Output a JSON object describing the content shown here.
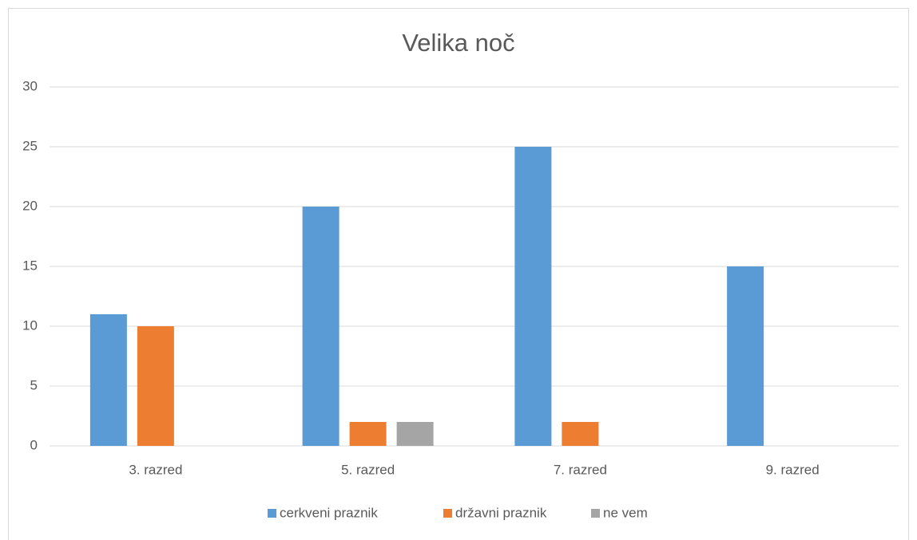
{
  "chart_data": {
    "type": "bar",
    "title": "Velika noč",
    "categories": [
      "3. razred",
      "5. razred",
      "7. razred",
      "9. razred"
    ],
    "series": [
      {
        "name": "cerkveni praznik",
        "color": "#5b9bd5",
        "values": [
          11,
          20,
          25,
          15
        ]
      },
      {
        "name": "državni praznik",
        "color": "#ed7d31",
        "values": [
          10,
          2,
          2,
          0
        ]
      },
      {
        "name": "ne vem",
        "color": "#a5a5a5",
        "values": [
          0,
          2,
          0,
          0
        ]
      }
    ],
    "ylim": [
      0,
      30
    ],
    "yticks": [
      0,
      5,
      10,
      15,
      20,
      25,
      30
    ],
    "grid": true,
    "legend": "bottom"
  }
}
